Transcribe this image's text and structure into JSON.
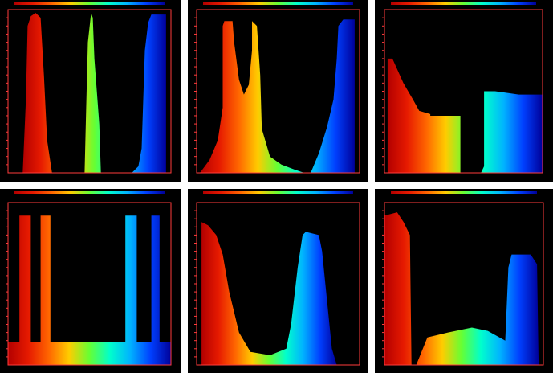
{
  "spectrum_colors": [
    "#b30000",
    "#e61a00",
    "#ff6600",
    "#ffcc00",
    "#66ff33",
    "#00ffcc",
    "#00b3ff",
    "#0040ff",
    "#000099"
  ],
  "frame_color": "#ff3b3b",
  "background_color": "#000000",
  "panels": [
    {
      "id": "panel-1",
      "shape": "three narrow peaks: red, green, blue"
    },
    {
      "id": "panel-2",
      "shape": "red-yellow peak with dip and blue peak"
    },
    {
      "id": "panel-3",
      "shape": "red slope, yellow block, cyan-blue block"
    },
    {
      "id": "panel-4",
      "shape": "two red-orange bars, low rainbow base, two blue bars"
    },
    {
      "id": "panel-5",
      "shape": "red slope and cyan peak with low green valley"
    },
    {
      "id": "panel-6",
      "shape": "red block, green hump, blue block"
    }
  ]
}
